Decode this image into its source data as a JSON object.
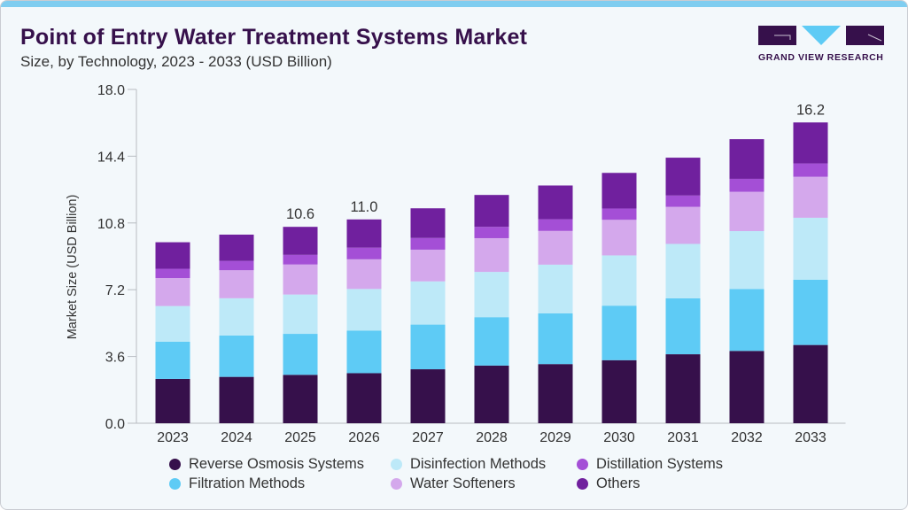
{
  "header": {
    "title": "Point of Entry Water Treatment Systems Market",
    "subtitle": "Size, by Technology, 2023 - 2033 (USD Billion)"
  },
  "logo": {
    "text": "GRAND VIEW RESEARCH"
  },
  "chart_data": {
    "type": "bar",
    "stacked": true,
    "ylabel": "Market Size (USD Billion)",
    "xlabel": "",
    "ylim": [
      0,
      18
    ],
    "yticks": [
      "0.0",
      "3.6",
      "7.2",
      "10.8",
      "14.4",
      "18.0"
    ],
    "grid": false,
    "legend_position": "bottom",
    "categories": [
      "2023",
      "2024",
      "2025",
      "2026",
      "2027",
      "2028",
      "2029",
      "2030",
      "2031",
      "2032",
      "2033"
    ],
    "series": [
      {
        "name": "Reverse Osmosis Systems",
        "color": "#36104b",
        "values": [
          2.39,
          2.5,
          2.61,
          2.7,
          2.91,
          3.11,
          3.19,
          3.4,
          3.72,
          3.9,
          4.22
        ]
      },
      {
        "name": "Filtration Methods",
        "color": "#5ecbf5",
        "values": [
          2.01,
          2.23,
          2.21,
          2.3,
          2.41,
          2.61,
          2.74,
          2.94,
          3.02,
          3.34,
          3.52
        ]
      },
      {
        "name": "Disinfection Methods",
        "color": "#bde9f8",
        "values": [
          1.92,
          2.01,
          2.12,
          2.24,
          2.33,
          2.44,
          2.62,
          2.71,
          2.93,
          3.12,
          3.34
        ]
      },
      {
        "name": "Water Softeners",
        "color": "#d4a8ec",
        "values": [
          1.51,
          1.51,
          1.62,
          1.6,
          1.71,
          1.82,
          1.82,
          1.92,
          2.0,
          2.12,
          2.21
        ]
      },
      {
        "name": "Distillation Systems",
        "color": "#a44fd6",
        "values": [
          0.5,
          0.5,
          0.52,
          0.63,
          0.63,
          0.61,
          0.63,
          0.61,
          0.61,
          0.7,
          0.72
        ]
      },
      {
        "name": "Others",
        "color": "#70209e",
        "values": [
          1.43,
          1.42,
          1.51,
          1.52,
          1.6,
          1.72,
          1.82,
          1.92,
          2.04,
          2.14,
          2.21
        ]
      }
    ],
    "data_labels": {
      "2025": "10.6",
      "2026": "11.0",
      "2033": "16.2"
    }
  },
  "legend_order": [
    0,
    2,
    4,
    1,
    3,
    5
  ]
}
